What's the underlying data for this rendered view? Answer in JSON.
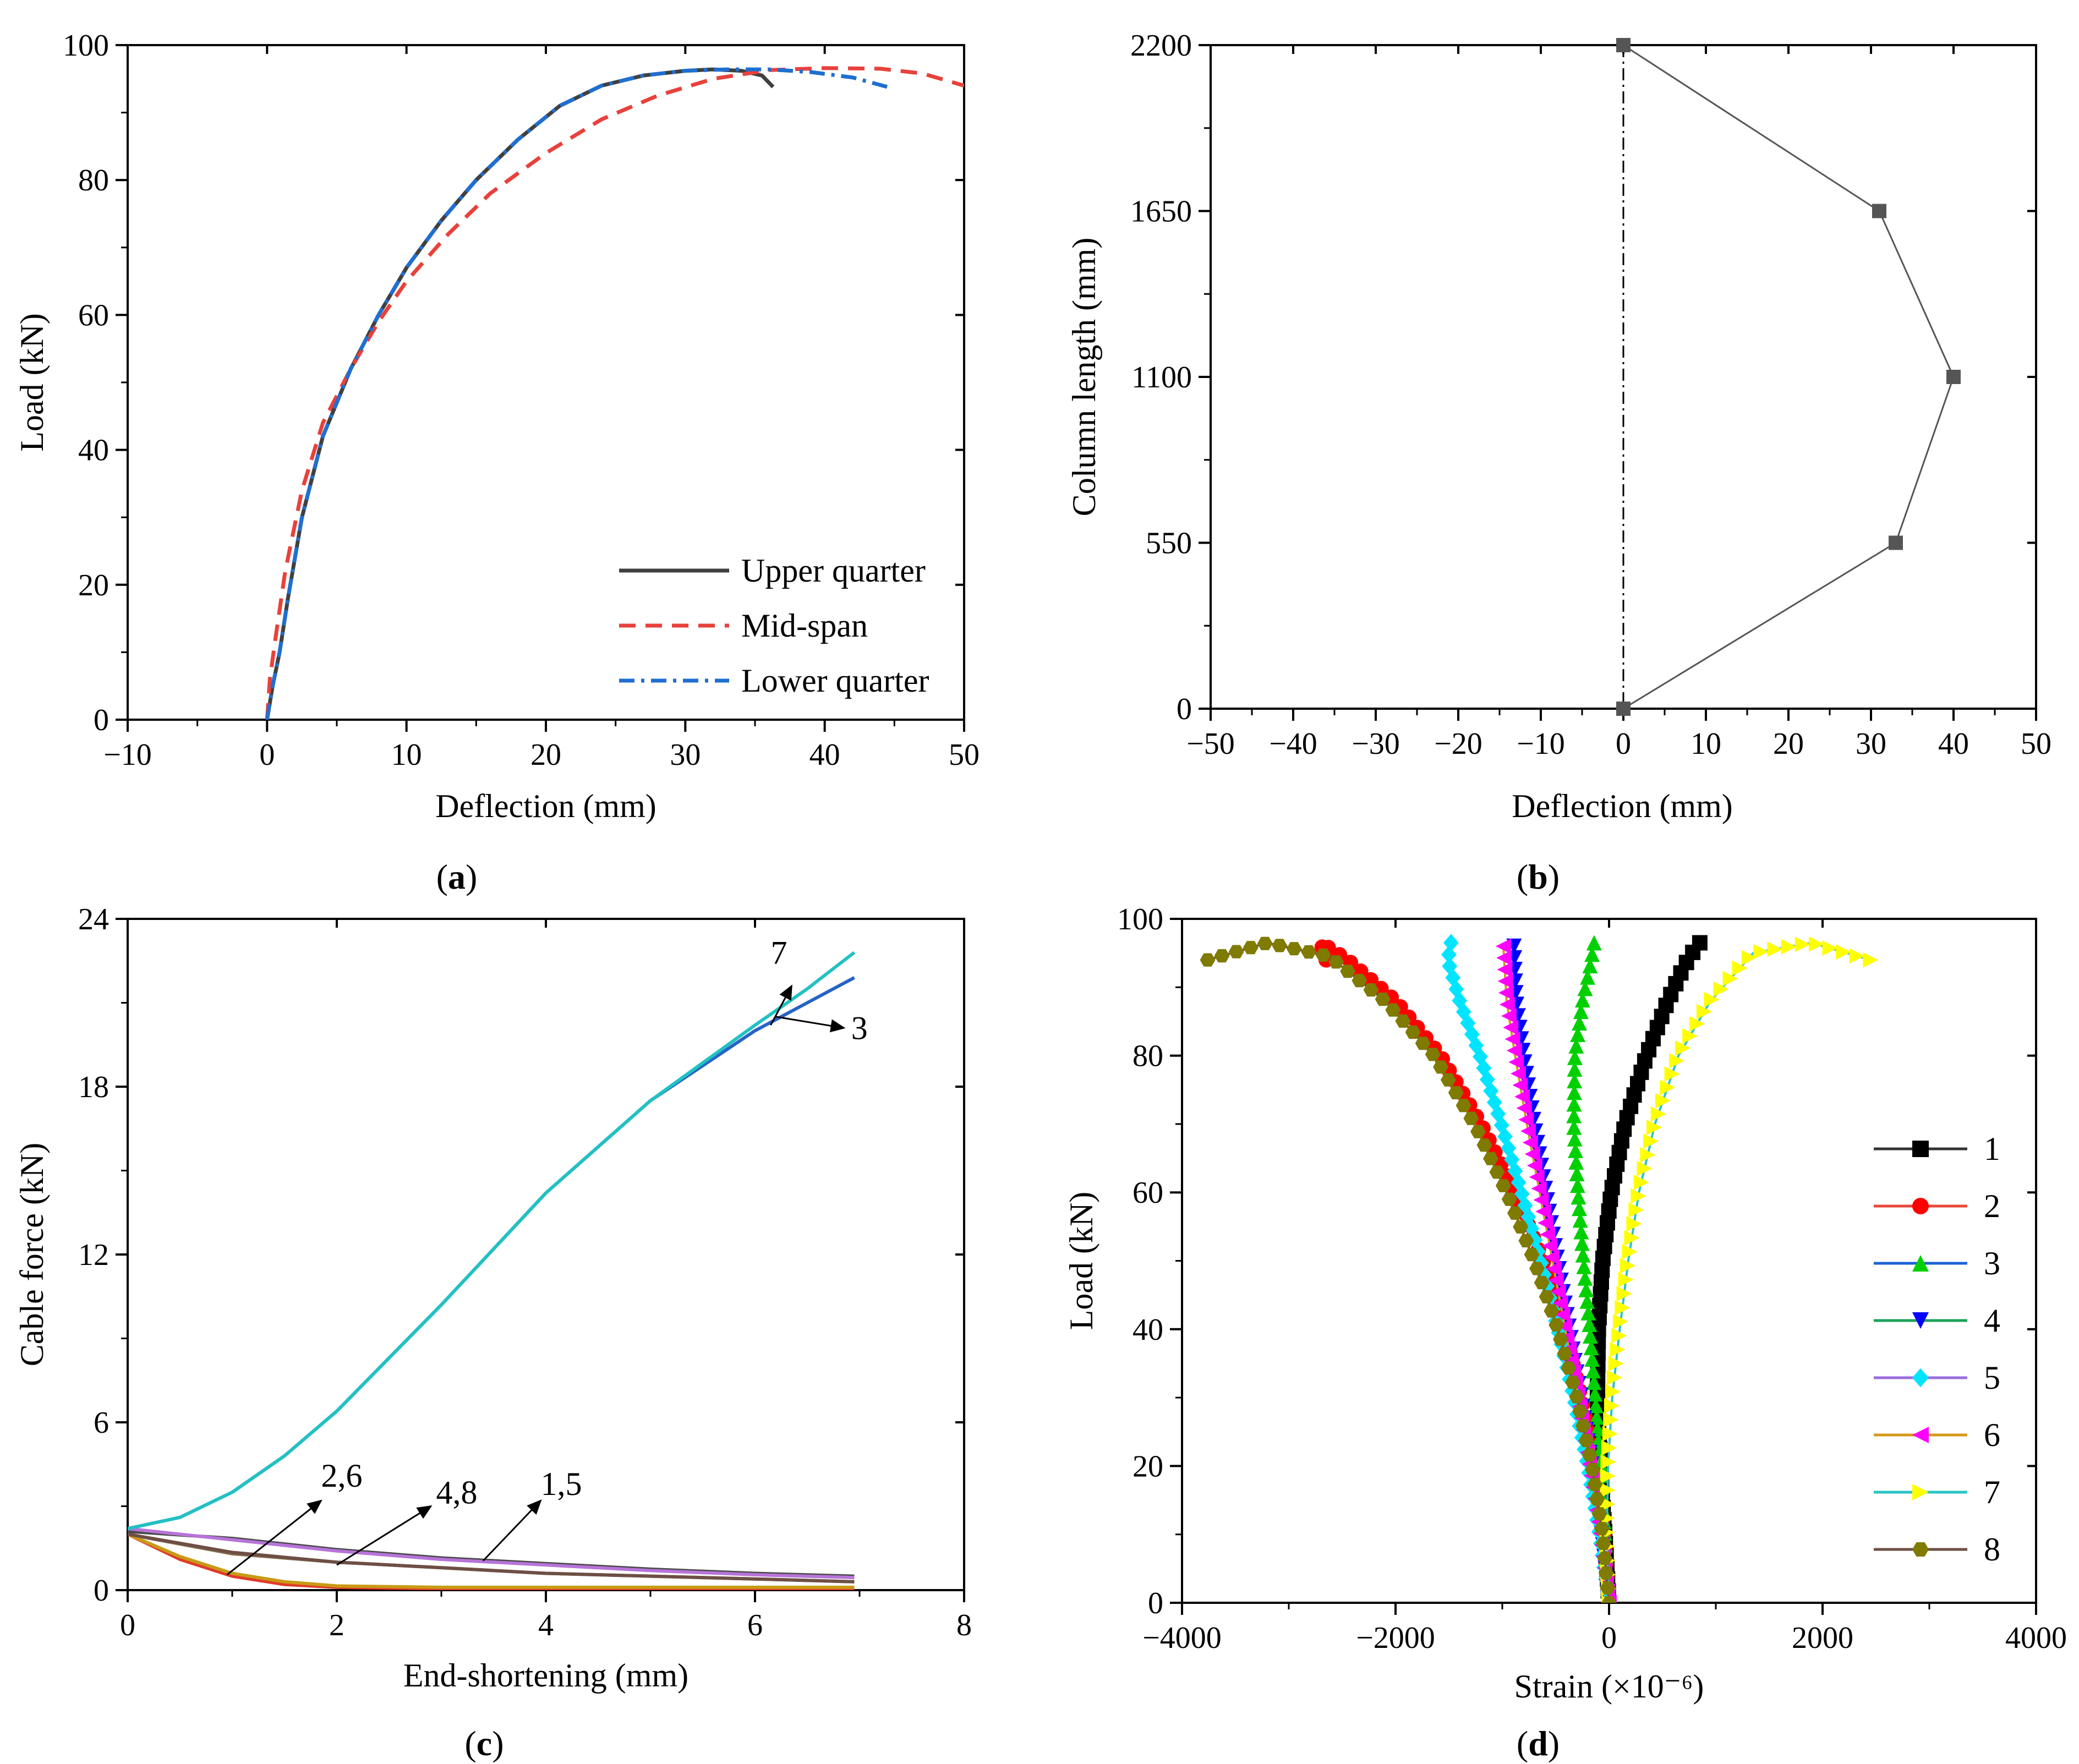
{
  "chart_data": [
    {
      "id": "a",
      "type": "line",
      "panel_label": "(a)",
      "xlabel": "Deflection (mm)",
      "ylabel": "Load (kN)",
      "xlim": [
        -10,
        50
      ],
      "ylim": [
        0,
        100
      ],
      "xticks": [
        -10,
        0,
        10,
        20,
        30,
        40,
        50
      ],
      "yticks": [
        0,
        20,
        40,
        60,
        80,
        100
      ],
      "legend": "bottom-right",
      "series": [
        {
          "name": "Upper quarter",
          "color": "#404040",
          "dash": "solid",
          "x": [
            0,
            0.4,
            0.9,
            1.5,
            2.5,
            4,
            6,
            8,
            10,
            12.5,
            15,
            18,
            21,
            24,
            27,
            30,
            32,
            34,
            35.5,
            36.3
          ],
          "y": [
            0,
            5,
            10,
            18,
            30,
            42,
            52,
            60,
            67,
            74,
            80,
            86,
            91,
            94,
            95.5,
            96.2,
            96.4,
            96.2,
            95.5,
            93.8
          ]
        },
        {
          "name": "Mid-span",
          "color": "#e8413c",
          "dash": "dashed",
          "x": [
            0,
            0.2,
            0.6,
            1.3,
            2.5,
            4,
            6,
            8,
            10,
            13,
            16,
            20,
            24,
            28,
            32,
            36,
            40,
            44,
            47,
            50
          ],
          "y": [
            0,
            6,
            12,
            22,
            34,
            44,
            52,
            59,
            65,
            72,
            78,
            84,
            89,
            92.5,
            95,
            96.3,
            96.6,
            96.5,
            95.8,
            94
          ]
        },
        {
          "name": "Lower quarter",
          "color": "#1f6fd1",
          "dash": "dashdot",
          "x": [
            0,
            0.4,
            0.9,
            1.5,
            2.5,
            4,
            6,
            8,
            10,
            12.5,
            15,
            18,
            21,
            24,
            27,
            30,
            33,
            36,
            39,
            42,
            44.5
          ],
          "y": [
            0,
            5,
            10,
            18,
            30,
            42,
            52,
            60,
            67,
            74,
            80,
            86,
            91,
            94,
            95.5,
            96.2,
            96.4,
            96.4,
            96,
            95.2,
            93.8
          ]
        }
      ]
    },
    {
      "id": "b",
      "type": "line",
      "panel_label": "(b)",
      "xlabel": "Deflection (mm)",
      "ylabel": "Column length (mm)",
      "xlim": [
        -50,
        50
      ],
      "ylim": [
        0,
        2200
      ],
      "xticks": [
        -50,
        -40,
        -30,
        -20,
        -10,
        0,
        10,
        20,
        30,
        40,
        50
      ],
      "yticks": [
        0,
        550,
        1100,
        1650,
        2200
      ],
      "series": [
        {
          "color": "#555555",
          "marker": "square",
          "x": [
            0,
            33,
            40,
            31,
            0
          ],
          "y": [
            0,
            550,
            1100,
            1650,
            2200
          ]
        }
      ],
      "reference_line": {
        "x": 0,
        "style": "dash-dot"
      }
    },
    {
      "id": "c",
      "type": "line",
      "panel_label": "(c)",
      "xlabel": "End-shortening (mm)",
      "ylabel": "Cable force (kN)",
      "xlim": [
        0,
        8
      ],
      "ylim": [
        0,
        24
      ],
      "xticks": [
        0,
        2,
        4,
        6,
        8
      ],
      "yticks": [
        0,
        6,
        12,
        18,
        24
      ],
      "series": [
        {
          "color": "#4a4a4a",
          "x": [
            0,
            1,
            2,
            3,
            4,
            5,
            6,
            6.95
          ],
          "y": [
            2.1,
            1.85,
            1.45,
            1.15,
            0.95,
            0.75,
            0.6,
            0.5
          ]
        },
        {
          "color": "#e03b2a",
          "x": [
            0,
            0.5,
            1,
            1.5,
            2,
            3,
            4,
            5,
            6,
            6.95
          ],
          "y": [
            2.0,
            1.1,
            0.5,
            0.2,
            0.1,
            0.05,
            0.05,
            0.05,
            0.05,
            0.05
          ]
        },
        {
          "color": "#2663c7",
          "x": [
            0,
            0.5,
            1,
            1.5,
            2,
            3,
            4,
            5,
            6,
            6.5,
            6.95
          ],
          "y": [
            2.2,
            2.6,
            3.5,
            4.8,
            6.4,
            10.2,
            14.2,
            17.5,
            20,
            21,
            21.9
          ]
        },
        {
          "color": "#8a6f4f",
          "x": [
            0,
            1,
            2,
            3,
            4,
            5,
            6,
            6.95
          ],
          "y": [
            2.0,
            1.3,
            1.0,
            0.8,
            0.6,
            0.5,
            0.4,
            0.3
          ]
        },
        {
          "color": "#b774d8",
          "x": [
            0,
            1,
            2,
            3,
            4,
            5,
            6,
            6.95
          ],
          "y": [
            2.2,
            1.8,
            1.4,
            1.1,
            0.9,
            0.7,
            0.55,
            0.45
          ]
        },
        {
          "color": "#c99a16",
          "x": [
            0,
            0.5,
            1,
            1.5,
            2,
            3,
            4,
            5,
            6,
            6.95
          ],
          "y": [
            2.0,
            1.2,
            0.6,
            0.3,
            0.15,
            0.1,
            0.1,
            0.1,
            0.1,
            0.1
          ]
        },
        {
          "color": "#22c1c3",
          "x": [
            0,
            0.5,
            1,
            1.5,
            2,
            3,
            4,
            5,
            6,
            6.5,
            6.95
          ],
          "y": [
            2.2,
            2.6,
            3.5,
            4.8,
            6.4,
            10.2,
            14.2,
            17.5,
            20.2,
            21.5,
            22.8
          ]
        },
        {
          "color": "#6e4f45",
          "x": [
            0,
            1,
            2,
            3,
            4,
            5,
            6,
            6.95
          ],
          "y": [
            2.0,
            1.35,
            1.0,
            0.8,
            0.6,
            0.5,
            0.4,
            0.3
          ]
        }
      ],
      "annotations": [
        {
          "text": "7",
          "from": [
            6.15,
            20.2
          ],
          "to": [
            6.35,
            21.6
          ],
          "label_at": [
            6.15,
            22.4
          ]
        },
        {
          "text": "3",
          "from": [
            6.2,
            20.5
          ],
          "to": [
            6.85,
            20.1
          ],
          "label_at": [
            6.92,
            19.7
          ]
        },
        {
          "text": "2,6",
          "from": [
            0.95,
            0.55
          ],
          "to": [
            1.85,
            3.2
          ],
          "label_at": [
            1.85,
            3.7
          ]
        },
        {
          "text": "4,8",
          "from": [
            2.0,
            0.9
          ],
          "to": [
            2.9,
            3.0
          ],
          "label_at": [
            2.95,
            3.1
          ]
        },
        {
          "text": "1,5",
          "from": [
            3.4,
            1.05
          ],
          "to": [
            3.95,
            3.2
          ],
          "label_at": [
            3.95,
            3.4
          ]
        }
      ]
    },
    {
      "id": "d",
      "type": "line",
      "panel_label": "(d)",
      "xlabel": "Strain (×10⁻⁶)",
      "ylabel": "Load (kN)",
      "xlim": [
        -4000,
        4000
      ],
      "ylim": [
        0,
        100
      ],
      "xticks": [
        -4000,
        -2000,
        0,
        2000,
        4000
      ],
      "yticks": [
        0,
        20,
        40,
        60,
        80,
        100
      ],
      "legend": "right",
      "series": [
        {
          "name": "1",
          "line_color": "#333333",
          "marker_color": "#000000",
          "marker": "square",
          "x": [
            0,
            -40,
            -80,
            -110,
            -100,
            -60,
            20,
            150,
            350,
            550,
            700,
            800,
            850
          ],
          "y": [
            0,
            10,
            20,
            30,
            40,
            50,
            60,
            70,
            80,
            88,
            93,
            95.5,
            96.5
          ]
        },
        {
          "name": "2",
          "line_color": "#e84a3a",
          "marker_color": "#ff0000",
          "marker": "circle",
          "x": [
            0,
            -50,
            -140,
            -260,
            -420,
            -620,
            -880,
            -1200,
            -1580,
            -2000,
            -2450,
            -2700,
            -2650
          ],
          "y": [
            0,
            10,
            20,
            30,
            40,
            50,
            60,
            70,
            80,
            88,
            94,
            96.5,
            94
          ]
        },
        {
          "name": "3",
          "line_color": "#1b62d6",
          "marker_color": "#00d000",
          "marker": "triangle-up",
          "x": [
            0,
            -40,
            -80,
            -130,
            -180,
            -240,
            -290,
            -330,
            -320,
            -250,
            -180,
            -140
          ],
          "y": [
            0,
            10,
            20,
            30,
            40,
            50,
            60,
            70,
            80,
            88,
            93,
            96.5
          ]
        },
        {
          "name": "4",
          "line_color": "#1ca35a",
          "marker_color": "#0000ff",
          "marker": "triangle-down",
          "x": [
            0,
            -70,
            -160,
            -260,
            -370,
            -480,
            -590,
            -700,
            -800,
            -870,
            -890
          ],
          "y": [
            0,
            10,
            20,
            30,
            40,
            50,
            60,
            70,
            80,
            88,
            96
          ]
        },
        {
          "name": "5",
          "line_color": "#9a6de0",
          "marker_color": "#00e5ff",
          "marker": "diamond",
          "x": [
            0,
            -90,
            -200,
            -330,
            -480,
            -640,
            -820,
            -1010,
            -1210,
            -1400,
            -1510,
            -1480
          ],
          "y": [
            0,
            10,
            20,
            30,
            40,
            50,
            60,
            70,
            80,
            88,
            94,
            96.5
          ]
        },
        {
          "name": "6",
          "line_color": "#d49a1a",
          "marker_color": "#ff00ff",
          "marker": "triangle-left",
          "x": [
            0,
            -80,
            -180,
            -290,
            -410,
            -530,
            -650,
            -770,
            -880,
            -960,
            -990
          ],
          "y": [
            0,
            10,
            20,
            30,
            40,
            50,
            60,
            70,
            80,
            88,
            96
          ]
        },
        {
          "name": "7",
          "line_color": "#2bc4c4",
          "marker_color": "#ffff00",
          "marker": "triangle-right",
          "x": [
            0,
            -20,
            -10,
            30,
            100,
            180,
            280,
            430,
            650,
            950,
            1350,
            1900,
            2450
          ],
          "y": [
            0,
            10,
            20,
            30,
            40,
            50,
            60,
            70,
            80,
            88,
            95,
            96.5,
            94
          ]
        },
        {
          "name": "8",
          "line_color": "#6e4f45",
          "marker_color": "#7f7a00",
          "marker": "hexagon",
          "x": [
            0,
            -60,
            -160,
            -300,
            -480,
            -700,
            -960,
            -1260,
            -1640,
            -2100,
            -2620,
            -3200,
            -3760
          ],
          "y": [
            0,
            10,
            20,
            30,
            40,
            50,
            60,
            70,
            80,
            88,
            94.5,
            96.5,
            94
          ]
        }
      ]
    }
  ]
}
